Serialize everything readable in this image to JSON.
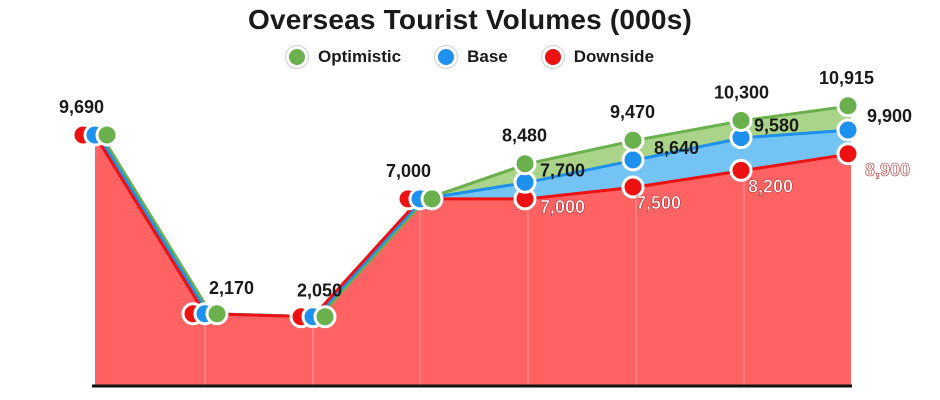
{
  "chart_data": {
    "type": "area",
    "title_plain": "Overseas Tourist ",
    "title_bold": "Volumes (000s)",
    "legend": "top-center",
    "grid": false,
    "ylim": [
      0,
      11500
    ],
    "x": [
      1,
      2,
      3,
      4,
      5,
      6,
      7,
      8
    ],
    "series": [
      {
        "name": "Optimistic",
        "color": "#6ab04c",
        "fill": "#a9d48a",
        "values": [
          9690,
          2170,
          2050,
          7000,
          8480,
          9470,
          10300,
          10915
        ],
        "labels": [
          "9,690",
          "2,170",
          "2,050",
          "7,000",
          "8,480",
          "9,470",
          "10,300",
          "10,915"
        ]
      },
      {
        "name": "Base",
        "color": "#1e90ee",
        "fill": "#74c3f5",
        "values": [
          9690,
          2170,
          2050,
          7000,
          7700,
          8640,
          9580,
          9900
        ],
        "labels": [
          "",
          "",
          "",
          "",
          "7,700",
          "8,640",
          "9,580",
          "9,900"
        ]
      },
      {
        "name": "Downside",
        "color": "#ee1111",
        "fill": "#ff6262",
        "values": [
          9690,
          2170,
          2050,
          7000,
          7000,
          7500,
          8200,
          8900
        ],
        "labels": [
          "",
          "",
          "",
          "",
          "7,000",
          "7,500",
          "8,200",
          "8,900"
        ]
      }
    ]
  }
}
